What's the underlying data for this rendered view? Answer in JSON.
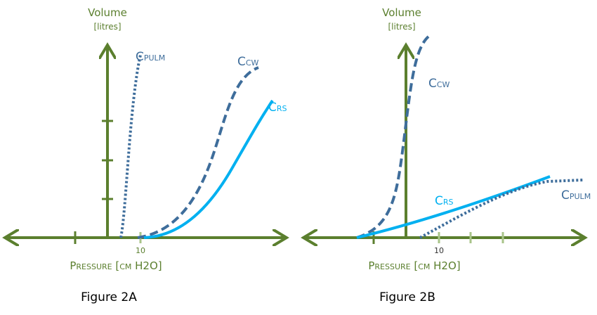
{
  "figures": [
    {
      "y_axis": {
        "title": "Volume",
        "unit": "[litres]"
      },
      "x_axis": {
        "title": "Pressure [cm H2O]",
        "tick": "10"
      },
      "curves": [
        {
          "main": "C",
          "sub": "PULM"
        },
        {
          "main": "C",
          "sub": "CW"
        },
        {
          "main": "C",
          "sub": "RS"
        }
      ],
      "caption": "Figure 2A"
    },
    {
      "y_axis": {
        "title": "Volume",
        "unit": "[litres]"
      },
      "x_axis": {
        "title": "Pressure [cm H2O]",
        "tick": "10"
      },
      "curves": [
        {
          "main": "C",
          "sub": "CW"
        },
        {
          "main": "C",
          "sub": "RS"
        },
        {
          "main": "C",
          "sub": "PULM"
        }
      ],
      "caption": "Figure 2B"
    }
  ]
}
